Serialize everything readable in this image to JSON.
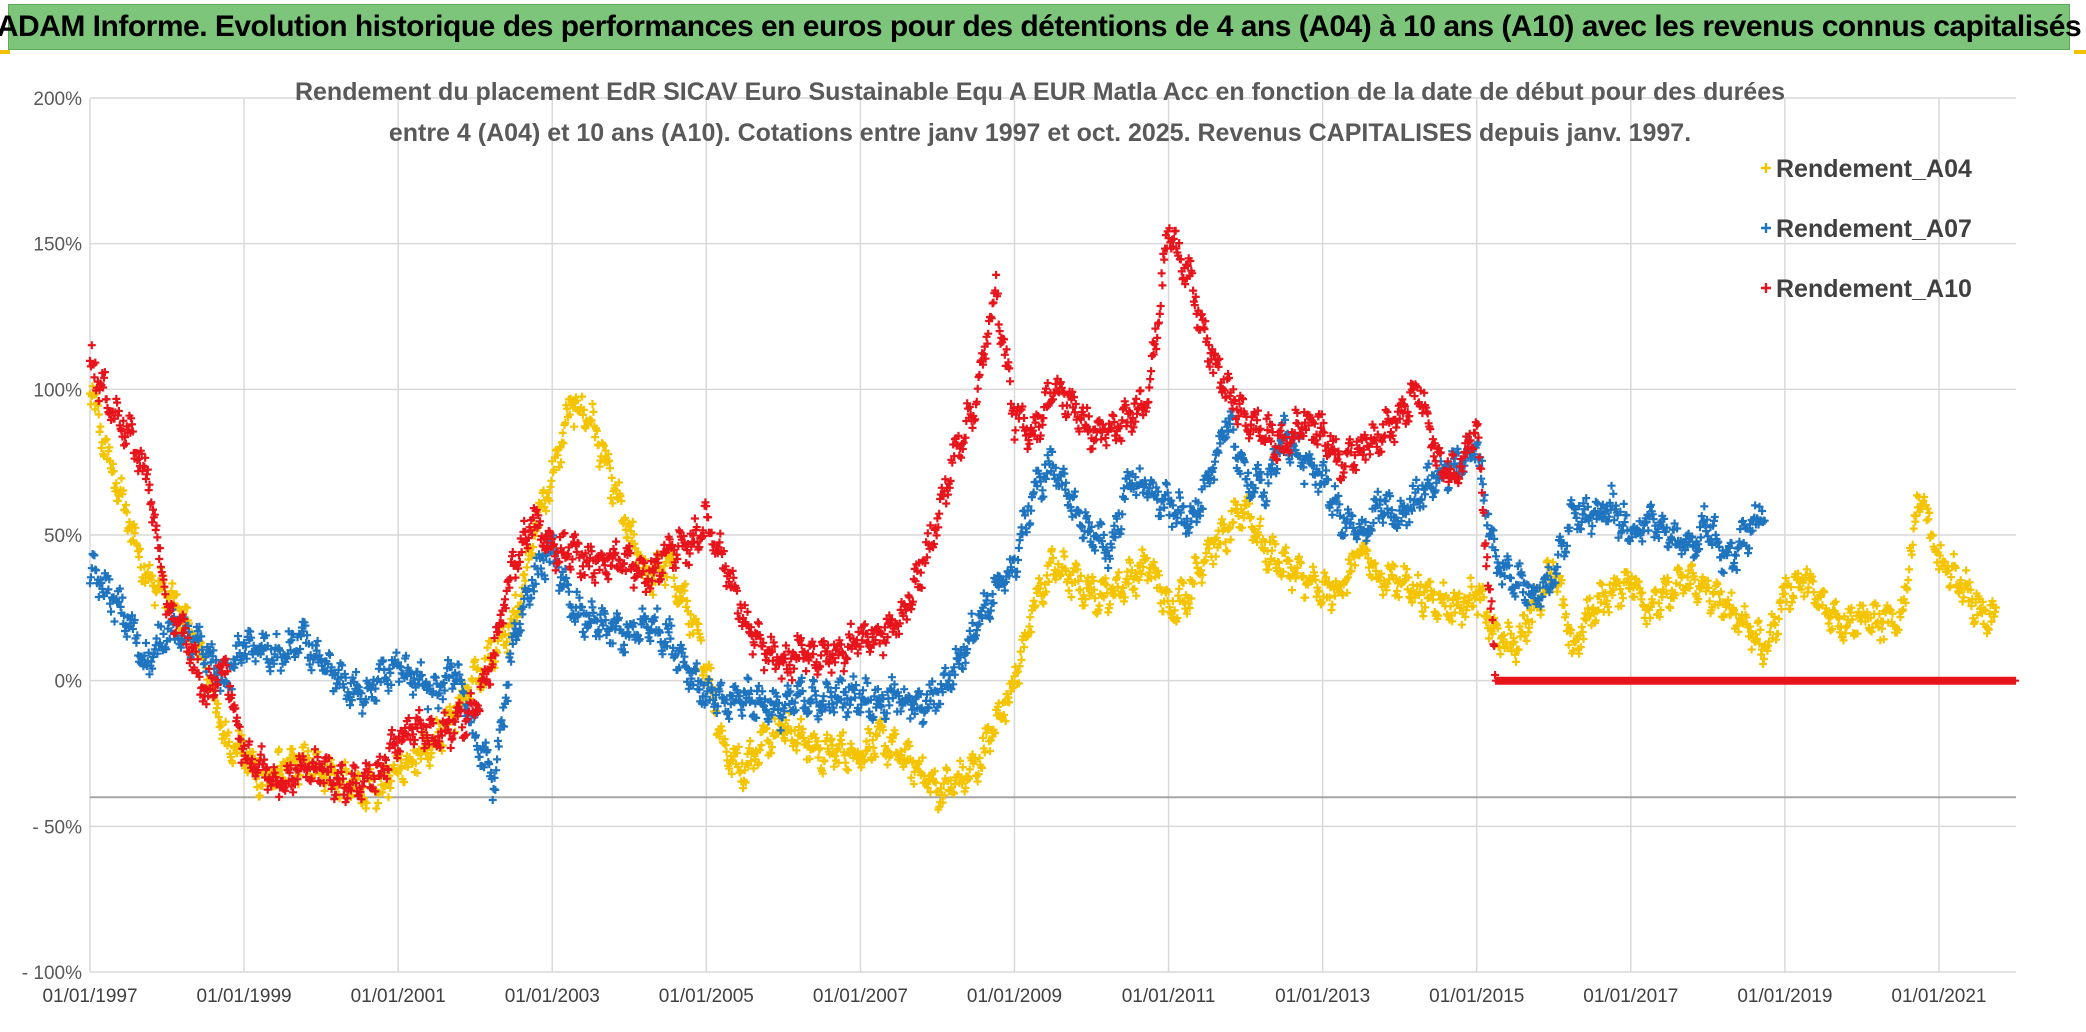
{
  "header": {
    "banner_title": "ADAM Informe. Evolution historique des performances en euros pour des détentions de 4 ans (A04) à 10 ans (A10) avec les revenus connus capitalisés"
  },
  "chart_data": {
    "type": "scatter",
    "title_line1": "Rendement du placement EdR SICAV Euro Sustainable Equ A EUR Matla Acc en fonction de la date de début pour des durées",
    "title_line2": "entre 4 (A04) et 10 ans (A10). Cotations entre janv 1997 et oct. 2025. Revenus CAPITALISES depuis janv. 1997.",
    "xlabel": "",
    "ylabel": "",
    "x_range": [
      1997.0,
      2022.0
    ],
    "ylim": [
      -100,
      200
    ],
    "y_ticks": [
      {
        "value": 200,
        "label": "200%"
      },
      {
        "value": 150,
        "label": "150%"
      },
      {
        "value": 100,
        "label": "100%"
      },
      {
        "value": 50,
        "label": "50%"
      },
      {
        "value": 0,
        "label": "0%"
      },
      {
        "value": -50,
        "label": "- 50%"
      },
      {
        "value": -100,
        "label": "- 100%"
      }
    ],
    "x_ticks": [
      {
        "value": 1997,
        "label": "01/01/1997"
      },
      {
        "value": 1999,
        "label": "01/01/1999"
      },
      {
        "value": 2001,
        "label": "01/01/2001"
      },
      {
        "value": 2003,
        "label": "01/01/2003"
      },
      {
        "value": 2005,
        "label": "01/01/2005"
      },
      {
        "value": 2007,
        "label": "01/01/2007"
      },
      {
        "value": 2009,
        "label": "01/01/2009"
      },
      {
        "value": 2011,
        "label": "01/01/2011"
      },
      {
        "value": 2013,
        "label": "01/01/2013"
      },
      {
        "value": 2015,
        "label": "01/01/2015"
      },
      {
        "value": 2017,
        "label": "01/01/2017"
      },
      {
        "value": 2019,
        "label": "01/01/2019"
      },
      {
        "value": 2021,
        "label": "01/01/2021"
      }
    ],
    "reference_line": -40,
    "grid": true,
    "legend_position": "top-right",
    "series": [
      {
        "name": "Rendement_A04",
        "color": "#f5c400",
        "x": [
          1997.0,
          1997.25,
          1997.5,
          1997.75,
          1998.0,
          1998.25,
          1998.5,
          1998.75,
          1999.0,
          1999.25,
          1999.5,
          1999.75,
          2000.0,
          2000.25,
          2000.5,
          2000.75,
          2001.0,
          2001.25,
          2001.5,
          2001.75,
          2002.0,
          2002.25,
          2002.5,
          2002.75,
          2003.0,
          2003.25,
          2003.5,
          2003.75,
          2004.0,
          2004.25,
          2004.5,
          2004.75,
          2005.0,
          2005.25,
          2005.5,
          2005.75,
          2006.0,
          2006.25,
          2006.5,
          2006.75,
          2007.0,
          2007.25,
          2007.5,
          2007.75,
          2008.0,
          2008.25,
          2008.5,
          2008.75,
          2009.0,
          2009.25,
          2009.5,
          2009.75,
          2010.0,
          2010.25,
          2010.5,
          2010.75,
          2011.0,
          2011.25,
          2011.5,
          2011.75,
          2012.0,
          2012.25,
          2012.5,
          2012.75,
          2013.0,
          2013.25,
          2013.5,
          2013.75,
          2014.0,
          2014.25,
          2014.5,
          2014.75,
          2015.0,
          2015.25,
          2015.5,
          2015.75,
          2016.0,
          2016.25,
          2016.5,
          2016.75,
          2017.0,
          2017.25,
          2017.5,
          2017.75,
          2018.0,
          2018.25,
          2018.5,
          2018.75,
          2019.0,
          2019.25,
          2019.5,
          2019.75,
          2020.0,
          2020.25,
          2020.5,
          2020.75,
          2021.0,
          2021.25,
          2021.5,
          2021.75
        ],
        "values": [
          100,
          75,
          55,
          35,
          30,
          20,
          5,
          -20,
          -25,
          -35,
          -30,
          -28,
          -30,
          -35,
          -37,
          -38,
          -30,
          -25,
          -20,
          -10,
          0,
          10,
          20,
          50,
          70,
          95,
          90,
          70,
          50,
          35,
          40,
          25,
          5,
          -25,
          -30,
          -20,
          -15,
          -20,
          -25,
          -24,
          -25,
          -20,
          -25,
          -30,
          -38,
          -35,
          -30,
          -15,
          0,
          25,
          40,
          35,
          30,
          30,
          35,
          40,
          25,
          30,
          45,
          50,
          60,
          45,
          40,
          35,
          30,
          32,
          45,
          35,
          35,
          30,
          28,
          25,
          30,
          15,
          12,
          25,
          40,
          10,
          25,
          30,
          35,
          25,
          30,
          35,
          30,
          25,
          20,
          10,
          30,
          35,
          25,
          20,
          22,
          20,
          20,
          65,
          40,
          35,
          25,
          20
        ]
      },
      {
        "name": "Rendement_A07",
        "color": "#1f74c0",
        "x": [
          1997.0,
          1997.25,
          1997.5,
          1997.75,
          1998.0,
          1998.25,
          1998.5,
          1998.75,
          1999.0,
          1999.25,
          1999.5,
          1999.75,
          2000.0,
          2000.25,
          2000.5,
          2000.75,
          2001.0,
          2001.25,
          2001.5,
          2001.75,
          2002.0,
          2002.25,
          2002.5,
          2002.75,
          2003.0,
          2003.25,
          2003.5,
          2003.75,
          2004.0,
          2004.25,
          2004.5,
          2004.75,
          2005.0,
          2005.25,
          2005.5,
          2005.75,
          2006.0,
          2006.25,
          2006.5,
          2006.75,
          2007.0,
          2007.25,
          2007.5,
          2007.75,
          2008.0,
          2008.25,
          2008.5,
          2008.75,
          2009.0,
          2009.25,
          2009.5,
          2009.75,
          2010.0,
          2010.25,
          2010.5,
          2010.75,
          2011.0,
          2011.25,
          2011.5,
          2011.75,
          2012.0,
          2012.25,
          2012.5,
          2012.75,
          2013.0,
          2013.25,
          2013.5,
          2013.75,
          2014.0,
          2014.25,
          2014.5,
          2014.75,
          2015.0,
          2015.25,
          2015.5,
          2015.75,
          2016.0,
          2016.25,
          2016.5,
          2016.75,
          2017.0,
          2017.25,
          2017.5,
          2017.75,
          2018.0,
          2018.25,
          2018.5,
          2018.75
        ],
        "values": [
          38,
          30,
          20,
          5,
          18,
          15,
          10,
          0,
          12,
          10,
          8,
          15,
          5,
          0,
          -5,
          0,
          5,
          0,
          -5,
          5,
          -20,
          -35,
          15,
          35,
          45,
          25,
          20,
          18,
          15,
          20,
          15,
          5,
          -5,
          -8,
          -5,
          -8,
          -10,
          -5,
          -8,
          -5,
          -5,
          -8,
          -5,
          -10,
          -5,
          5,
          20,
          30,
          40,
          65,
          75,
          60,
          50,
          45,
          70,
          65,
          60,
          55,
          65,
          90,
          70,
          65,
          85,
          75,
          70,
          55,
          50,
          60,
          55,
          65,
          70,
          75,
          80,
          40,
          35,
          30,
          35,
          60,
          55,
          60,
          50,
          55,
          50,
          45,
          55,
          40,
          50,
          60
        ]
      },
      {
        "name": "Rendement_A10",
        "color": "#e8141b",
        "x": [
          1997.0,
          1997.25,
          1997.5,
          1997.75,
          1998.0,
          1998.25,
          1998.5,
          1998.75,
          1999.0,
          1999.25,
          1999.5,
          1999.75,
          2000.0,
          2000.25,
          2000.5,
          2000.75,
          2001.0,
          2001.25,
          2001.5,
          2001.75,
          2002.0,
          2002.25,
          2002.5,
          2002.75,
          2003.0,
          2003.25,
          2003.5,
          2003.75,
          2004.0,
          2004.25,
          2004.5,
          2004.75,
          2005.0,
          2005.25,
          2005.5,
          2005.75,
          2006.0,
          2006.25,
          2006.5,
          2006.75,
          2007.0,
          2007.25,
          2007.5,
          2007.75,
          2008.0,
          2008.25,
          2008.5,
          2008.75,
          2009.0,
          2009.25,
          2009.5,
          2009.75,
          2010.0,
          2010.25,
          2010.5,
          2010.75,
          2011.0,
          2011.25,
          2011.5,
          2011.75,
          2012.0,
          2012.25,
          2012.5,
          2012.75,
          2013.0,
          2013.25,
          2013.5,
          2013.75,
          2014.0,
          2014.25,
          2014.5,
          2014.75,
          2015.0,
          2015.25,
          2015.5,
          2015.75,
          2016.0,
          2016.5,
          2017.0,
          2017.5,
          2018.0,
          2018.5,
          2019.0,
          2019.5,
          2020.0,
          2020.5,
          2021.0,
          2021.5,
          2022.0
        ],
        "values": [
          110,
          95,
          85,
          70,
          25,
          15,
          -5,
          5,
          -25,
          -30,
          -35,
          -30,
          -30,
          -35,
          -35,
          -32,
          -20,
          -15,
          -20,
          -15,
          -10,
          10,
          40,
          55,
          45,
          45,
          40,
          42,
          40,
          35,
          45,
          45,
          55,
          40,
          20,
          10,
          5,
          10,
          8,
          10,
          15,
          15,
          20,
          35,
          55,
          80,
          95,
          135,
          90,
          85,
          100,
          95,
          85,
          85,
          90,
          100,
          155,
          140,
          115,
          100,
          90,
          85,
          80,
          90,
          85,
          75,
          80,
          85,
          90,
          100,
          75,
          70,
          90,
          0,
          0,
          0,
          0,
          0,
          0,
          0,
          0,
          0,
          0,
          0,
          0,
          0,
          0,
          0,
          0
        ]
      }
    ]
  }
}
